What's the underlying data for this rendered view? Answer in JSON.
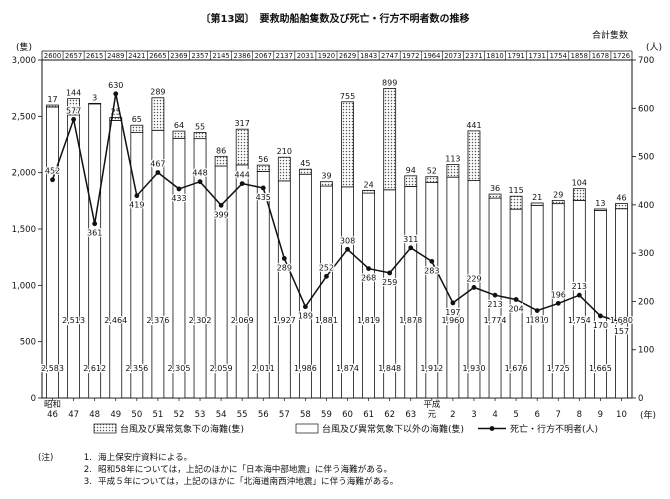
{
  "title": "〔第13図〕　要救助船舶隻数及び死亡・行方不明者数の推移",
  "left_unit": "(隻)",
  "right_unit": "(人)",
  "total_label": "合計隻数",
  "x_unit": "(年)",
  "legend": {
    "typhoon": "台風及び異常気象下の海難(隻)",
    "other": "台風及び異常気象下以外の海難(隻)",
    "deaths": "死亡・行方不明者(人)"
  },
  "notes": {
    "label": "(注)",
    "items": [
      {
        "num": "1.",
        "text": "海上保安庁資料による。"
      },
      {
        "num": "2.",
        "text": "昭和58年については，上記のほかに「日本海中部地震」に伴う海難がある。"
      },
      {
        "num": "3.",
        "text": "平成５年については，上記のほかに「北海道南西沖地震」に伴う海難がある。"
      }
    ]
  },
  "chart_data": {
    "type": "bar",
    "categories": [
      "46",
      "47",
      "48",
      "49",
      "50",
      "51",
      "52",
      "53",
      "54",
      "55",
      "56",
      "57",
      "58",
      "59",
      "60",
      "61",
      "62",
      "63",
      "元",
      "2",
      "3",
      "4",
      "5",
      "6",
      "7",
      "8",
      "9",
      "10"
    ],
    "era_marks": {
      "showa": "昭和",
      "heisei": "平成"
    },
    "series": [
      {
        "name": "台風及び異常気象下以外の海難(隻)",
        "values": [
          2583,
          2513,
          2612,
          2464,
          2356,
          2376,
          2305,
          2302,
          2059,
          2069,
          2011,
          1927,
          1986,
          1881,
          1874,
          1819,
          1848,
          1878,
          1912,
          1960,
          1930,
          1774,
          1676,
          1710,
          1725,
          1754,
          1665,
          1680
        ]
      },
      {
        "name": "台風及び異常気象下の海難(隻)",
        "values": [
          17,
          144,
          3,
          25,
          65,
          289,
          64,
          55,
          86,
          317,
          56,
          210,
          45,
          39,
          755,
          24,
          899,
          94,
          52,
          113,
          441,
          36,
          115,
          21,
          29,
          104,
          13,
          46
        ]
      },
      {
        "name": "死亡・行方不明者(人)",
        "values": [
          452,
          577,
          361,
          630,
          419,
          467,
          433,
          448,
          399,
          444,
          435,
          289,
          189,
          252,
          308,
          268,
          259,
          311,
          283,
          197,
          229,
          213,
          204,
          181,
          196,
          213,
          170,
          157
        ]
      }
    ],
    "totals": [
      2600,
      2657,
      2615,
      2489,
      2421,
      2665,
      2369,
      2357,
      2145,
      2386,
      2067,
      2137,
      2031,
      1920,
      2629,
      1843,
      2747,
      1972,
      1964,
      2073,
      2371,
      1810,
      1791,
      1731,
      1754,
      1858,
      1678,
      1726
    ],
    "yleft_ticks": [
      "0",
      "500",
      "1,000",
      "1,500",
      "2,000",
      "2,500",
      "3,000"
    ],
    "yright_ticks": [
      "0",
      "100",
      "200",
      "300",
      "400",
      "500",
      "600",
      "700"
    ],
    "yleft_range": [
      0,
      3000
    ],
    "yright_range": [
      0,
      700
    ]
  }
}
